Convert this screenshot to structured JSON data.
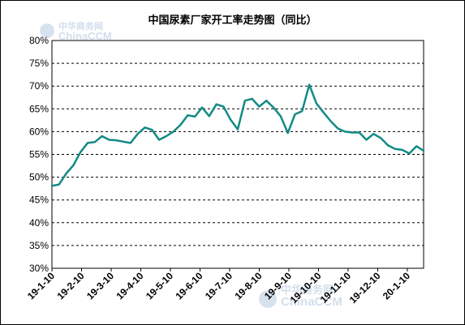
{
  "chart_data": {
    "type": "line",
    "title": "中国尿素厂家开工率走势图（同比）",
    "xlabel": "",
    "ylabel": "",
    "ylim": [
      30,
      80
    ],
    "y_ticks": [
      "30%",
      "35%",
      "40%",
      "45%",
      "50%",
      "55%",
      "60%",
      "65%",
      "70%",
      "75%",
      "80%"
    ],
    "x_ticks": [
      "19-1-10",
      "19-2-10",
      "19-3-10",
      "19-4-10",
      "19-5-10",
      "19-6-10",
      "19-7-10",
      "19-8-10",
      "19-9-10",
      "19-10-10",
      "19-11-10",
      "19-12-10",
      "20-1-10"
    ],
    "grid": "horizontal-dashed",
    "line_color": "#138a85",
    "series": [
      {
        "values": [
          48.1,
          48.4,
          50.8,
          52.6,
          55.5,
          57.5,
          57.7,
          59.0,
          58.2,
          58.1,
          57.8,
          57.5,
          59.5,
          60.9,
          60.4,
          58.2,
          59.0,
          60.0,
          61.5,
          63.6,
          63.3,
          65.3,
          63.4,
          66.0,
          65.5,
          62.6,
          60.5,
          66.8,
          67.2,
          65.5,
          66.8,
          65.3,
          63.4,
          59.7,
          63.8,
          64.5,
          70.3,
          66.2,
          64.2,
          62.3,
          60.7,
          60.0,
          59.8,
          59.8,
          58.2,
          59.5,
          58.6,
          57.0,
          56.2,
          56.0,
          55.2,
          56.8,
          55.8
        ]
      }
    ]
  },
  "watermark": {
    "line1": "中华商务网",
    "line2": "ChinaCCM"
  }
}
